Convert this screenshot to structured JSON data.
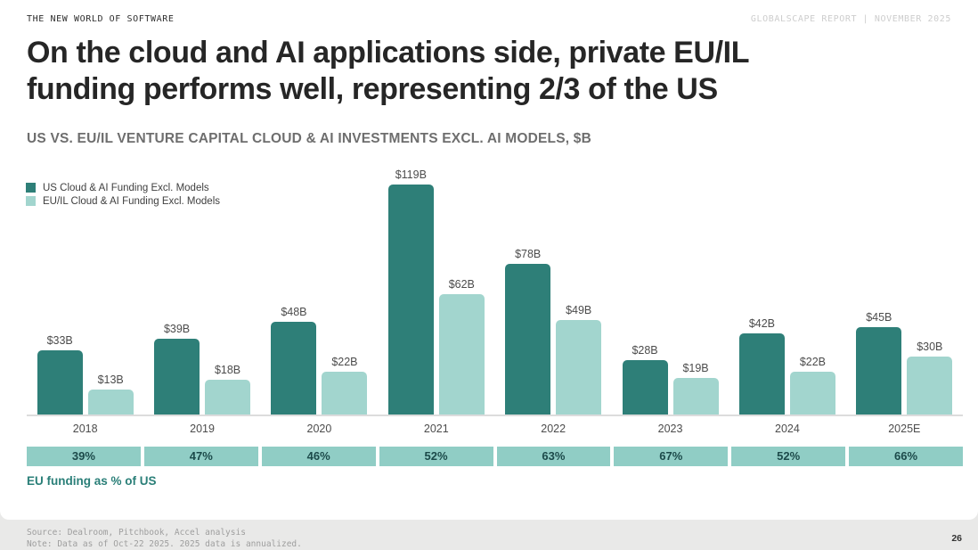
{
  "header": {
    "eyebrow": "THE NEW WORLD OF SOFTWARE",
    "report_label": "GLOBALSCAPE REPORT | NOVEMBER 2025"
  },
  "title": {
    "line1": "On the cloud and AI applications side, private EU/IL",
    "line2": "funding performs well, representing 2/3 of the US"
  },
  "chart_data": {
    "type": "bar",
    "title": "US VS. EU/IL VENTURE CAPITAL CLOUD & AI INVESTMENTS EXCL. AI MODELS, $B",
    "categories": [
      "2018",
      "2019",
      "2020",
      "2021",
      "2022",
      "2023",
      "2024",
      "2025E"
    ],
    "series": [
      {
        "name": "US Cloud & AI Funding Excl. Models",
        "color": "#2e7f78",
        "values": [
          33,
          39,
          48,
          119,
          78,
          28,
          42,
          45
        ],
        "value_labels": [
          "$33B",
          "$39B",
          "$48B",
          "$119B",
          "$78B",
          "$28B",
          "$42B",
          "$45B"
        ]
      },
      {
        "name": "EU/IL Cloud & AI Funding Excl. Models",
        "color": "#a2d5ce",
        "values": [
          13,
          18,
          22,
          62,
          49,
          19,
          22,
          30
        ],
        "value_labels": [
          "$13B",
          "$18B",
          "$22B",
          "$62B",
          "$49B",
          "$19B",
          "$22B",
          "$30B"
        ]
      }
    ],
    "percent_row": {
      "label": "EU funding as % of US",
      "values": [
        "39%",
        "47%",
        "46%",
        "52%",
        "63%",
        "67%",
        "52%",
        "66%"
      ],
      "cell_color": "#90cdc5",
      "text_color": "#1c4a4a"
    },
    "unit_prefix": "$",
    "unit_suffix": "B",
    "ylim": [
      0,
      129
    ],
    "grid": false,
    "legend_position": "top-left"
  },
  "footer": {
    "source": "Source: Dealroom, Pitchbook, Accel analysis",
    "note": "Note: Data as of Oct-22 2025. 2025 data is annualized.",
    "page_number": "26"
  },
  "colors": {
    "us_series": "#2e7f78",
    "euil_series": "#a2d5ce",
    "percent_band": "#90cdc5",
    "caption_teal": "#2a7f78",
    "footer_strip": "#e9e9e8"
  }
}
